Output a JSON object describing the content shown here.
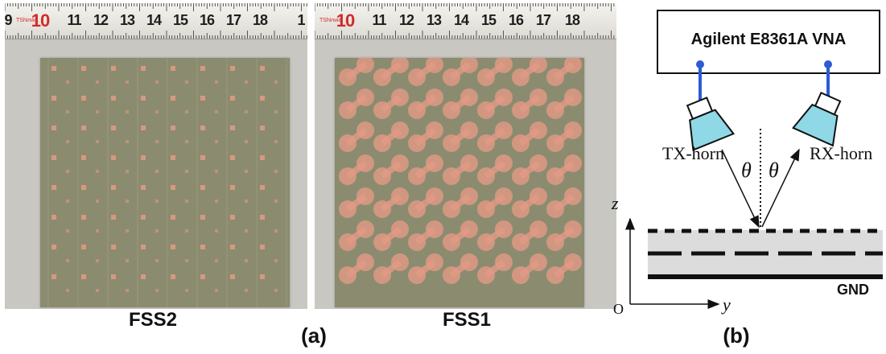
{
  "panel_a": {
    "photo_fss2": {
      "ruler_ticks": [
        "9",
        "10",
        "11",
        "12",
        "13",
        "14",
        "15",
        "16",
        "17",
        "18",
        "1"
      ],
      "ruler_brand": "TShinwa",
      "caption": "FSS2"
    },
    "photo_fss1": {
      "ruler_ticks": [
        "10",
        "11",
        "12",
        "13",
        "14",
        "15",
        "16",
        "17",
        "18"
      ],
      "ruler_brand": "TShinwa",
      "caption": "FSS1"
    },
    "label": "(a)"
  },
  "panel_b": {
    "instrument": "Agilent E8361A VNA",
    "tx_horn": "TX-horn",
    "rx_horn": "RX-horn",
    "angle_symbol": "θ",
    "z_axis": "z",
    "y_axis": "y",
    "origin": "O",
    "ground": "GND",
    "label": "(b)"
  },
  "colors": {
    "board": "#8b8c6f",
    "copper_pattern": "#e39a86",
    "horn_fill": "#8fd8e6",
    "cable": "#2c5bd6",
    "substrate": "#dcdcdc"
  }
}
